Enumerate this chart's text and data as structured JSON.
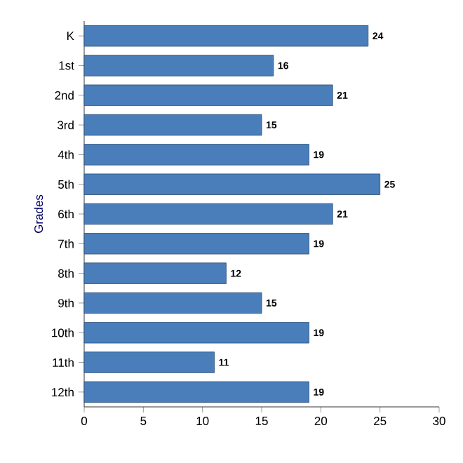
{
  "chart_data": {
    "type": "bar",
    "orientation": "horizontal",
    "ylabel": "Grades",
    "categories": [
      "K",
      "1st",
      "2nd",
      "3rd",
      "4th",
      "5th",
      "6th",
      "7th",
      "8th",
      "9th",
      "10th",
      "11th",
      "12th"
    ],
    "values": [
      24,
      16,
      21,
      15,
      19,
      25,
      21,
      19,
      12,
      15,
      19,
      11,
      19
    ],
    "color": "#4a7ebb",
    "xlim": [
      0,
      30
    ],
    "xticks": [
      0,
      5,
      10,
      15,
      20,
      25,
      30
    ],
    "data_labels": true,
    "grid": false
  }
}
